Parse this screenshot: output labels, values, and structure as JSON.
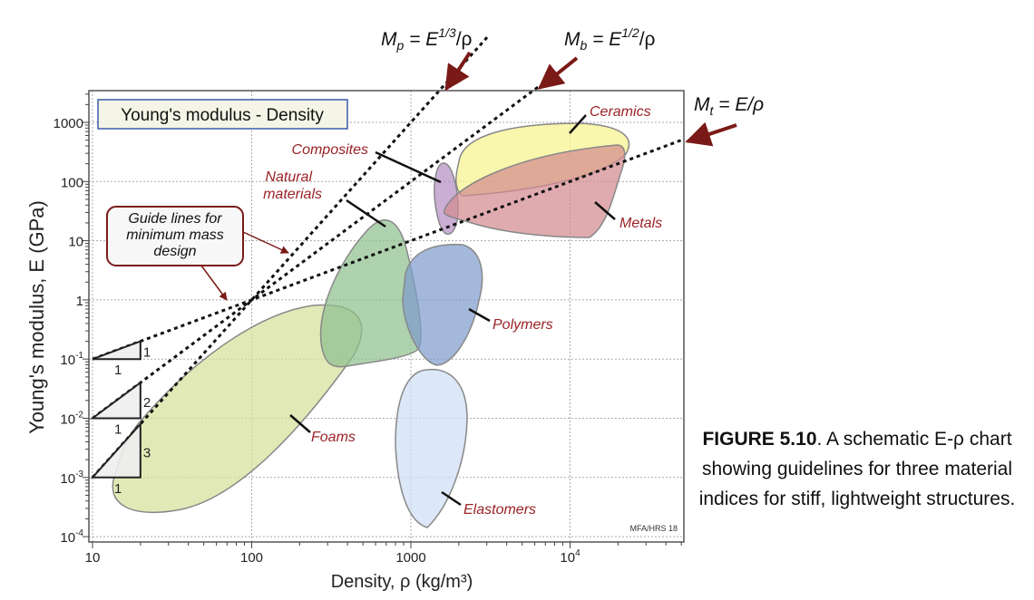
{
  "chart_data": {
    "type": "scatter",
    "title": "Young's modulus - Density",
    "xlabel": "Density, ρ  (kg/m³)",
    "ylabel": "Young's modulus, E (GPa)",
    "xscale": "log",
    "yscale": "log",
    "xlim": [
      10,
      52000
    ],
    "ylim": [
      0.0001,
      3500
    ],
    "grid": true,
    "x_ticks": [
      {
        "v": 10,
        "label": "10"
      },
      {
        "v": 100,
        "label": "100"
      },
      {
        "v": 1000,
        "label": "1000"
      },
      {
        "v": 10000,
        "label": "10",
        "sup": "4"
      }
    ],
    "y_ticks": [
      {
        "v": 1000,
        "label": "1000"
      },
      {
        "v": 100,
        "label": "100"
      },
      {
        "v": 10,
        "label": "10"
      },
      {
        "v": 1,
        "label": "1"
      },
      {
        "v": 0.1,
        "label": "10",
        "sup": "-1"
      },
      {
        "v": 0.01,
        "label": "10",
        "sup": "-2"
      },
      {
        "v": 0.001,
        "label": "10",
        "sup": "-3"
      },
      {
        "v": 0.0001,
        "label": "10",
        "sup": "-4"
      }
    ],
    "families": [
      {
        "name": "Foams",
        "color": "#d6e29a",
        "density_range": [
          12,
          300
        ],
        "modulus_range": [
          0.0003,
          0.8
        ]
      },
      {
        "name": "Natural materials",
        "color": "#8fbf8f",
        "density_range": [
          350,
          900
        ],
        "modulus_range": [
          0.06,
          25
        ]
      },
      {
        "name": "Polymers",
        "color": "#7f9ccc",
        "density_range": [
          900,
          2600
        ],
        "modulus_range": [
          0.1,
          10
        ]
      },
      {
        "name": "Elastomers",
        "color": "#cfdef5",
        "density_range": [
          850,
          2200
        ],
        "modulus_range": [
          0.00014,
          0.06
        ]
      },
      {
        "name": "Composites",
        "color": "#b58fc4",
        "density_range": [
          1400,
          2000
        ],
        "modulus_range": [
          15,
          200
        ]
      },
      {
        "name": "Ceramics",
        "color": "#f7f38e",
        "density_range": [
          2000,
          15000
        ],
        "modulus_range": [
          40,
          950
        ]
      },
      {
        "name": "Metals",
        "color": "#d48a90",
        "density_range": [
          1700,
          22000
        ],
        "modulus_range": [
          12,
          450
        ]
      }
    ],
    "guide_lines": [
      {
        "label": "M",
        "sub": "t",
        "expr": " = E/ρ",
        "slope": 1,
        "through": [
          10,
          0.1
        ],
        "rise": "1",
        "run": "1"
      },
      {
        "label": "M",
        "sub": "b",
        "expr": " = E",
        "sup": "1/2",
        "tail": "/ρ",
        "slope": 2,
        "through": [
          10,
          0.01
        ],
        "rise": "2",
        "run": "1"
      },
      {
        "label": "M",
        "sub": "p",
        "expr": " = E",
        "sup": "1/3",
        "tail": "/ρ",
        "slope": 3,
        "through": [
          10,
          0.001
        ],
        "rise": "3",
        "run": "1"
      }
    ],
    "annotation": [
      "Guide lines for",
      "minimum mass",
      "design"
    ],
    "credit": "MFA/HRS 18",
    "label_color": "#9b2226",
    "arrow_color": "#7a1a16"
  },
  "caption": {
    "bold": "FIGURE 5.10",
    "text": ". A schematic E-ρ chart showing guidelines for three material indices for stiff, lightweight structures."
  }
}
